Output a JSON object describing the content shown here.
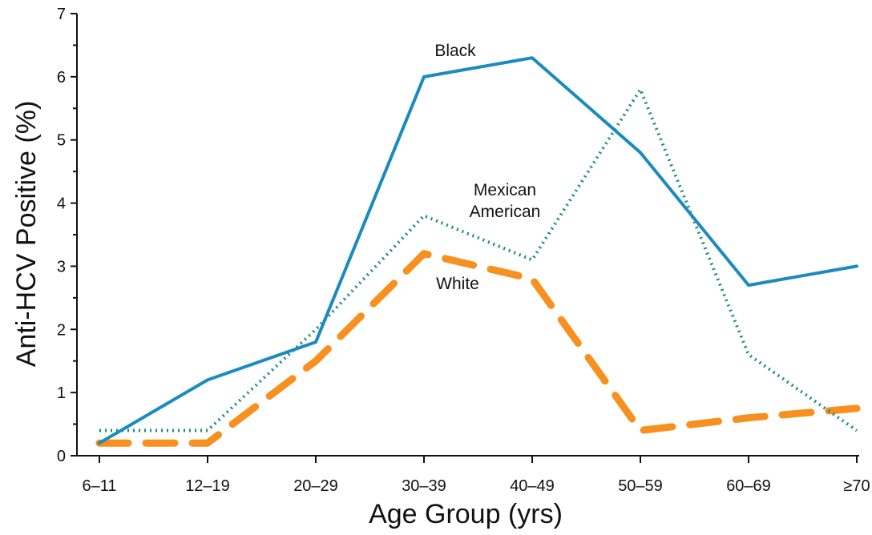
{
  "chart_data": {
    "type": "line",
    "title": "",
    "xlabel": "Age Group (yrs)",
    "ylabel": "Anti-HCV Positive (%)",
    "categories": [
      "6–11",
      "12–19",
      "20–29",
      "30–39",
      "40–49",
      "50–59",
      "60–69",
      "≥70"
    ],
    "ylim": [
      0,
      7
    ],
    "yticks": [
      0,
      1,
      2,
      3,
      4,
      5,
      6,
      7
    ],
    "grid": false,
    "legend": "none",
    "series": [
      {
        "name": "Black",
        "values": [
          0.2,
          1.2,
          1.8,
          6.0,
          6.3,
          4.8,
          2.7,
          3.0
        ],
        "color": "#1b8bbf",
        "style": "solid"
      },
      {
        "name": "Mexican American",
        "values": [
          0.4,
          0.4,
          2.0,
          3.8,
          3.1,
          5.8,
          1.6,
          0.4
        ],
        "color": "#1d8a80",
        "style": "dotted"
      },
      {
        "name": "White",
        "values": [
          0.2,
          0.2,
          1.5,
          3.2,
          2.8,
          0.4,
          0.6,
          0.75
        ],
        "color": "#f7901e",
        "style": "dashed"
      }
    ],
    "series_label_lines": [
      [
        "Black"
      ],
      [
        "Mexican",
        "American"
      ],
      [
        "White"
      ]
    ]
  }
}
